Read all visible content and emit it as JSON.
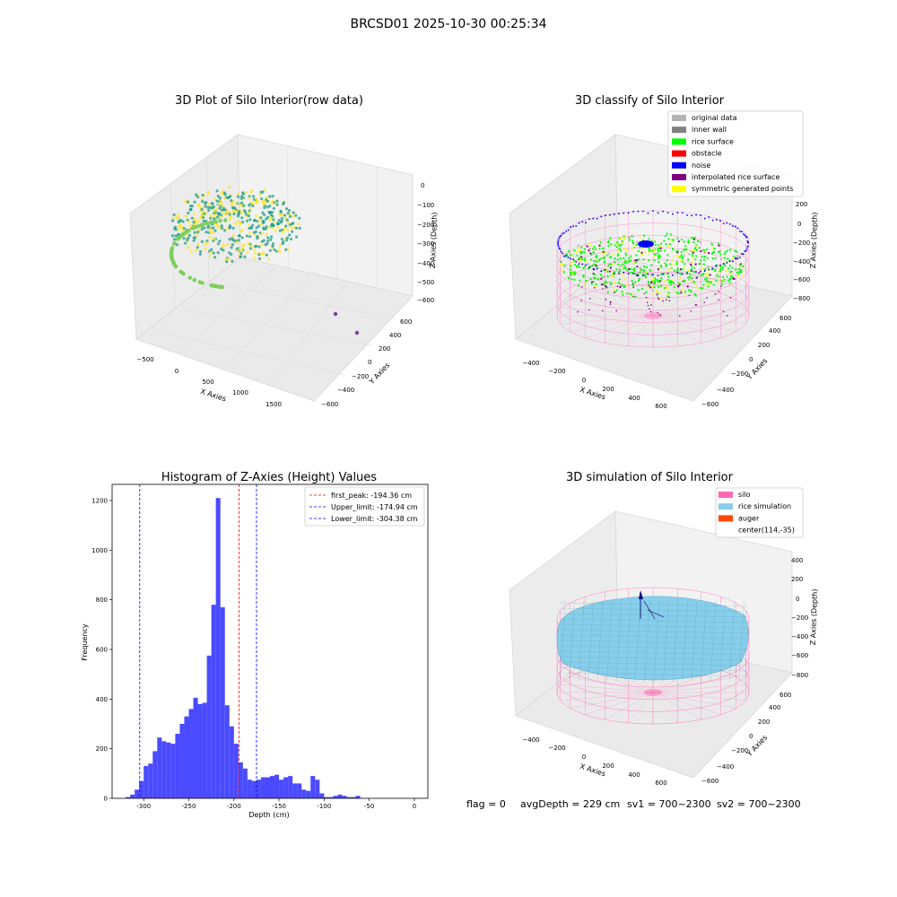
{
  "figure": {
    "suptitle": "BRCSD01 2025-10-30 00:25:34",
    "footer": {
      "flag": "flag = 0",
      "avg_depth": "avgDepth = 229 cm",
      "sv1": "sv1 = 700~2300",
      "sv2": "sv2 = 700~2300"
    }
  },
  "chart_data": [
    {
      "type": "scatter",
      "title": "3D Plot of Silo Interior(row data)",
      "xlabel": "X Axies",
      "ylabel": "Y Axies",
      "zlabel": "Z Axies (Depth)",
      "x_ticks": [
        "−500",
        "0",
        "500",
        "1000",
        "1500"
      ],
      "y_ticks": [
        "−600",
        "−400",
        "−200",
        "0",
        "200",
        "400",
        "600"
      ],
      "z_ticks": [
        "0",
        "−100",
        "−200",
        "−300",
        "−400",
        "−500",
        "−600"
      ],
      "colors": {
        "cloud_low": "#1f9e89",
        "cloud_high": "#fde725",
        "outlier": "#7b3f9e"
      }
    },
    {
      "type": "scatter",
      "title": "3D classify of Silo Interior",
      "xlabel": "X Axies",
      "ylabel": "Y Axies",
      "zlabel": "Z Axies (Depth)",
      "x_ticks": [
        "−400",
        "−200",
        "0",
        "200",
        "400",
        "600"
      ],
      "y_ticks": [
        "−600",
        "−400",
        "−200",
        "0",
        "200",
        "400",
        "600"
      ],
      "z_ticks": [
        "200",
        "0",
        "−200",
        "−400",
        "−600",
        "−800"
      ],
      "legend": [
        {
          "label": "original data",
          "color": "#b3b3b3"
        },
        {
          "label": "inner wall",
          "color": "#808080"
        },
        {
          "label": "rice surface",
          "color": "#00ff00"
        },
        {
          "label": "obstacle",
          "color": "#ff0000"
        },
        {
          "label": "noise",
          "color": "#0000ff"
        },
        {
          "label": "interpolated rice surface",
          "color": "#800080"
        },
        {
          "label": "symmetric generated points",
          "color": "#ffff00"
        }
      ]
    },
    {
      "type": "bar",
      "title": "Histogram of Z-Axies (Height) Values",
      "xlabel": "Depth (cm)",
      "ylabel": "Frequency",
      "xlim": [
        -335,
        15
      ],
      "ylim": [
        0,
        1265
      ],
      "x_ticks": [
        -300,
        -250,
        -200,
        -150,
        -100,
        -50,
        0
      ],
      "y_ticks": [
        0,
        200,
        400,
        600,
        800,
        1000,
        1200
      ],
      "bar_color": "#4a4aff",
      "bins": [
        [
          -320,
          -315,
          5
        ],
        [
          -315,
          -310,
          15
        ],
        [
          -310,
          -305,
          35
        ],
        [
          -305,
          -300,
          70
        ],
        [
          -300,
          -295,
          130
        ],
        [
          -295,
          -290,
          140
        ],
        [
          -290,
          -285,
          190
        ],
        [
          -285,
          -280,
          245
        ],
        [
          -280,
          -275,
          230
        ],
        [
          -275,
          -270,
          225
        ],
        [
          -270,
          -265,
          220
        ],
        [
          -265,
          -260,
          260
        ],
        [
          -260,
          -255,
          300
        ],
        [
          -255,
          -250,
          330
        ],
        [
          -250,
          -245,
          360
        ],
        [
          -245,
          -240,
          405
        ],
        [
          -240,
          -235,
          380
        ],
        [
          -235,
          -230,
          385
        ],
        [
          -230,
          -225,
          575
        ],
        [
          -225,
          -220,
          780
        ],
        [
          -220,
          -215,
          1210
        ],
        [
          -215,
          -210,
          770
        ],
        [
          -210,
          -205,
          375
        ],
        [
          -205,
          -200,
          290
        ],
        [
          -200,
          -195,
          220
        ],
        [
          -195,
          -190,
          145
        ],
        [
          -190,
          -185,
          120
        ],
        [
          -185,
          -180,
          75
        ],
        [
          -180,
          -175,
          70
        ],
        [
          -175,
          -170,
          75
        ],
        [
          -170,
          -165,
          85
        ],
        [
          -165,
          -160,
          85
        ],
        [
          -160,
          -155,
          90
        ],
        [
          -155,
          -150,
          95
        ],
        [
          -150,
          -145,
          75
        ],
        [
          -145,
          -140,
          85
        ],
        [
          -140,
          -135,
          90
        ],
        [
          -135,
          -130,
          60
        ],
        [
          -130,
          -125,
          60
        ],
        [
          -125,
          -120,
          35
        ],
        [
          -120,
          -115,
          30
        ],
        [
          -115,
          -110,
          90
        ],
        [
          -110,
          -105,
          75
        ],
        [
          -105,
          -100,
          20
        ],
        [
          -100,
          -95,
          5
        ],
        [
          -95,
          -90,
          5
        ],
        [
          -90,
          -85,
          10
        ],
        [
          -85,
          -80,
          15
        ],
        [
          -80,
          -75,
          10
        ],
        [
          -75,
          -70,
          5
        ],
        [
          -70,
          -65,
          5
        ],
        [
          -65,
          -60,
          10
        ]
      ],
      "vlines": [
        {
          "label": "first_peak: -194.36 cm",
          "x": -194.36,
          "color": "#ff0000"
        },
        {
          "label": "Upper_limit: -174.94 cm",
          "x": -174.94,
          "color": "#0000ff"
        },
        {
          "label": "Lower_limit: -304.38 cm",
          "x": -304.38,
          "color": "#0000ff"
        }
      ],
      "legend_position": "top-right"
    },
    {
      "type": "surface",
      "title": "3D simulation of Silo Interior",
      "xlabel": "X Axies",
      "ylabel": "Y Axies",
      "zlabel": "Z Axies (Depth)",
      "x_ticks": [
        "−400",
        "−200",
        "0",
        "200",
        "400",
        "600"
      ],
      "y_ticks": [
        "−600",
        "−400",
        "−200",
        "0",
        "200",
        "400",
        "600"
      ],
      "z_ticks": [
        "400",
        "200",
        "0",
        "−200",
        "−400",
        "−600",
        "−800"
      ],
      "legend": [
        {
          "label": "silo",
          "color": "#ff69b4"
        },
        {
          "label": "rice simulation",
          "color": "#87ceeb"
        },
        {
          "label": "auger",
          "color": "#ff4500"
        },
        {
          "label": "center(114,-35)",
          "color": "#ffffff"
        }
      ]
    }
  ]
}
